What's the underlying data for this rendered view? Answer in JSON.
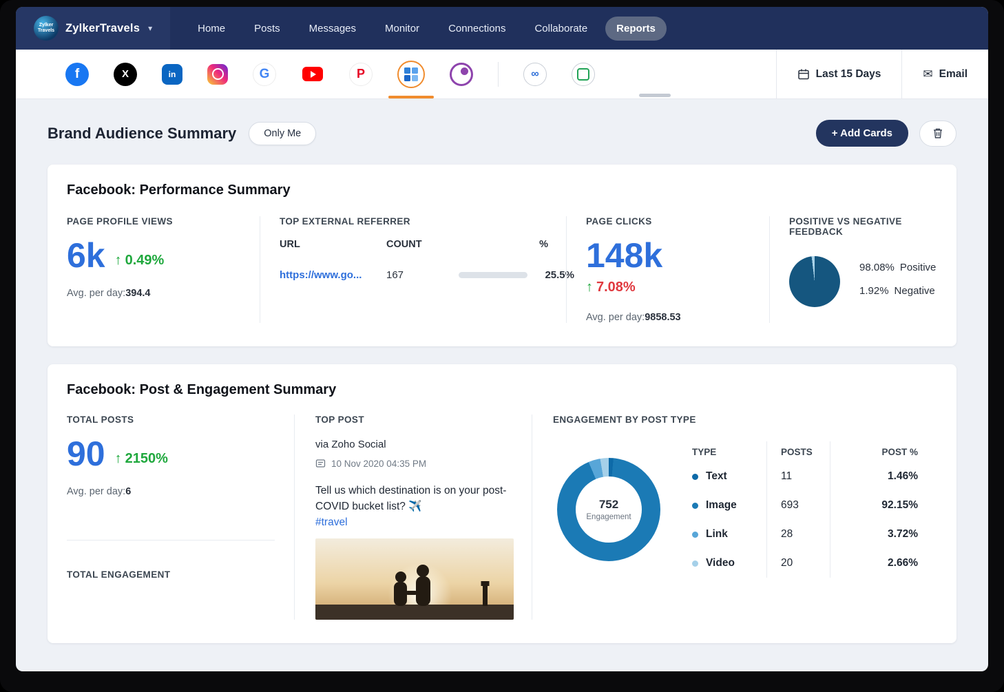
{
  "brand": {
    "name": "ZylkerTravels",
    "logo_text": "Zylker Travels",
    "chevron": "▾"
  },
  "nav": {
    "items": [
      "Home",
      "Posts",
      "Messages",
      "Monitor",
      "Connections",
      "Collaborate",
      "Reports"
    ]
  },
  "toolbar": {
    "networks": [
      {
        "id": "facebook",
        "glyph": "f"
      },
      {
        "id": "x",
        "glyph": "X"
      },
      {
        "id": "linkedin",
        "glyph": "in"
      },
      {
        "id": "instagram",
        "glyph": ""
      },
      {
        "id": "google",
        "glyph": "G"
      },
      {
        "id": "youtube",
        "glyph": ""
      },
      {
        "id": "pinterest",
        "glyph": "P"
      },
      {
        "id": "brand-grid",
        "glyph": ""
      },
      {
        "id": "purple-network",
        "glyph": ""
      },
      {
        "id": "meta",
        "glyph": "∞"
      },
      {
        "id": "green-app",
        "glyph": ""
      }
    ],
    "date_range": "Last 15 Days",
    "email": "Email",
    "email_icon": "✉"
  },
  "page": {
    "title": "Brand Audience Summary",
    "visibility": "Only Me",
    "add_cards": "+ Add Cards"
  },
  "performance": {
    "title": "Facebook: Performance Summary",
    "profile_views": {
      "label": "PAGE PROFILE VIEWS",
      "value": "6k",
      "arrow": "↑",
      "change": "0.49%",
      "avg_label": "Avg. per day:",
      "avg": "394.4"
    },
    "referrer": {
      "label": "TOP EXTERNAL REFERRER",
      "col_url": "URL",
      "col_count": "COUNT",
      "col_pct": "%",
      "url": "https://www.go...",
      "count": "167",
      "pct": "25.5%",
      "bar_pct": 25.5
    },
    "page_clicks": {
      "label": "PAGE CLICKS",
      "value": "148k",
      "arrow": "↑",
      "change": "7.08%",
      "avg_label": "Avg. per day:",
      "avg": "9858.53"
    },
    "feedback": {
      "label": "POSITIVE VS NEGATIVE FEEDBACK",
      "positive_value": "98.08%",
      "positive_label": "Positive",
      "negative_value": "1.92%",
      "negative_label": "Negative",
      "slices": [
        {
          "pct": 98.08,
          "color": "#15567f"
        },
        {
          "pct": 1.92,
          "color": "#a9d2e8"
        }
      ]
    }
  },
  "posts_card": {
    "title": "Facebook: Post & Engagement Summary",
    "total_posts": {
      "label": "TOTAL POSTS",
      "value": "90",
      "arrow": "↑",
      "change": "2150%",
      "avg_label": "Avg. per day:",
      "avg": "6"
    },
    "total_engagement_label": "TOTAL ENGAGEMENT",
    "top_post": {
      "label": "TOP POST",
      "via": "via Zoho Social",
      "date": "10 Nov 2020 04:35 PM",
      "text": "Tell us which destination is on your post-COVID bucket list? ✈️",
      "hashtag": "#travel"
    },
    "by_type": {
      "label": "ENGAGEMENT BY POST TYPE",
      "center_value": "752",
      "center_label": "Engagement",
      "col_type": "TYPE",
      "col_posts": "POSTS",
      "col_pct": "POST %",
      "rows": [
        {
          "type": "Text",
          "posts": "11",
          "pct": "1.46%",
          "color": "#0d6aa8"
        },
        {
          "type": "Image",
          "posts": "693",
          "pct": "92.15%",
          "color": "#1b7ab5"
        },
        {
          "type": "Link",
          "posts": "28",
          "pct": "3.72%",
          "color": "#58a6d8"
        },
        {
          "type": "Video",
          "posts": "20",
          "pct": "2.66%",
          "color": "#a5d0e9"
        }
      ],
      "slices": [
        {
          "pct": 1.46,
          "color": "#0d6aa8"
        },
        {
          "pct": 92.15,
          "color": "#1b7ab5"
        },
        {
          "pct": 3.72,
          "color": "#58a6d8"
        },
        {
          "pct": 2.66,
          "color": "#a5d0e9"
        }
      ]
    }
  },
  "chart_data": [
    {
      "type": "pie",
      "title": "Positive vs Negative Feedback",
      "labels": [
        "Positive",
        "Negative"
      ],
      "values": [
        98.08,
        1.92
      ]
    },
    {
      "type": "pie",
      "title": "Engagement by Post Type",
      "labels": [
        "Text",
        "Image",
        "Link",
        "Video"
      ],
      "values": [
        1.46,
        92.15,
        3.72,
        2.66
      ],
      "center": "752 Engagement"
    }
  ]
}
